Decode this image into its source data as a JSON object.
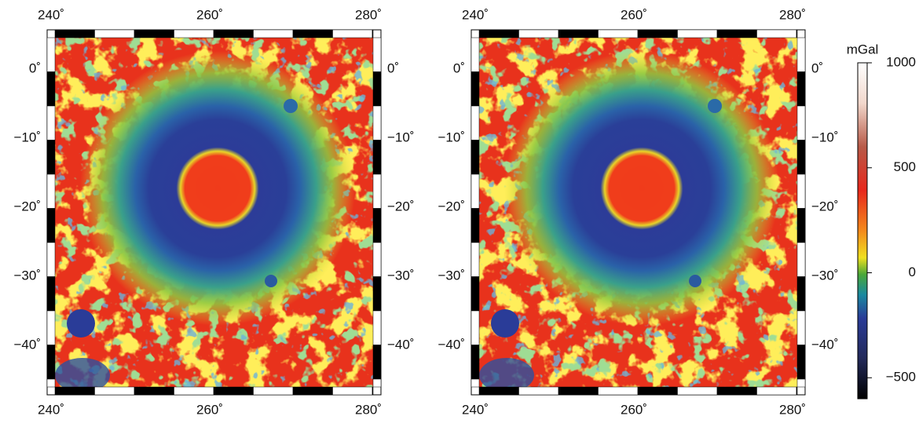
{
  "maps": [
    {
      "x_labels_top": [
        "240˚",
        "260˚",
        "280˚"
      ],
      "x_labels_bottom": [
        "240˚",
        "260˚",
        "280˚"
      ],
      "y_labels_left": [
        "0˚",
        "−10˚",
        "−20˚",
        "−30˚",
        "−40˚"
      ],
      "y_labels_right": [
        "0˚",
        "−10˚",
        "−20˚",
        "−30˚",
        "−40˚"
      ]
    },
    {
      "x_labels_top": [
        "240˚",
        "260˚",
        "280˚"
      ],
      "x_labels_bottom": [
        "240˚",
        "260˚",
        "280˚"
      ],
      "y_labels_left": [
        "0˚",
        "−10˚",
        "−20˚",
        "−30˚",
        "−40˚"
      ],
      "y_labels_right": [
        "0˚",
        "−10˚",
        "−20˚",
        "−30˚",
        "−40˚"
      ]
    }
  ],
  "colorbar": {
    "title": "mGal",
    "ylim": [
      -600,
      1000
    ],
    "ticks": [
      {
        "value": 1000,
        "label": "1000"
      },
      {
        "value": 500,
        "label": "500"
      },
      {
        "value": 0,
        "label": "0"
      },
      {
        "value": -500,
        "label": "−500"
      }
    ]
  }
}
